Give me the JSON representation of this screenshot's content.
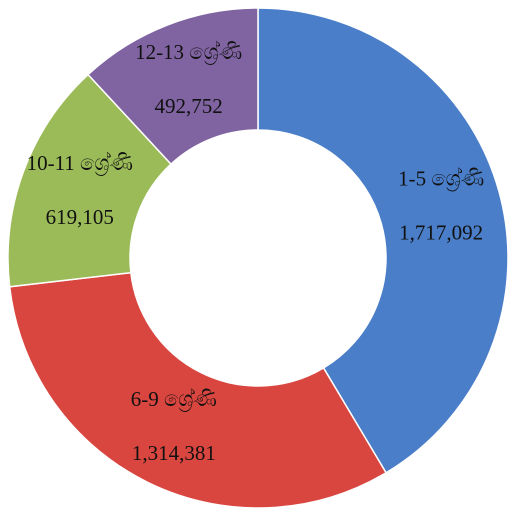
{
  "chart_data": {
    "type": "donut",
    "categories": [
      "1-5 ශ්‍රේණි",
      "6-9 ශ්‍රේණි",
      "10-11 ශ්‍රේණි",
      "12-13 ශ්‍රේණි"
    ],
    "values": [
      1717092,
      1314381,
      619105,
      492752
    ],
    "value_labels": [
      "1,717,092",
      "1,314,381",
      "619,105",
      "492,752"
    ],
    "colors": [
      "#4a7ec8",
      "#d9453f",
      "#9bbb59",
      "#8064a2"
    ]
  }
}
